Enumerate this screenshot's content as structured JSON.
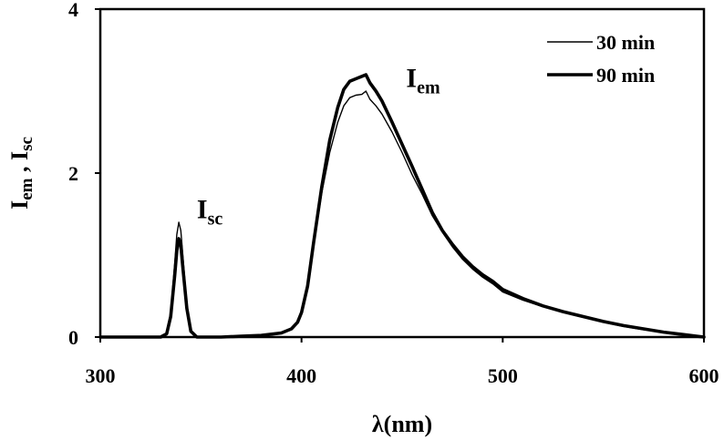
{
  "chart_data": {
    "type": "line",
    "xlabel": "λ(nm)",
    "ylabel_parts": {
      "a_main": "I",
      "a_sub": "em",
      "sep": " , ",
      "b_main": "I",
      "b_sub": "sc"
    },
    "xlim": [
      300,
      600
    ],
    "ylim": [
      0,
      4
    ],
    "xticks": [
      "300",
      "400",
      "500",
      "600"
    ],
    "yticks": [
      "0",
      "2",
      "4"
    ],
    "grid": false,
    "legend_position": "top-right",
    "annotations": [
      {
        "id": "isc",
        "main": "I",
        "sub": "sc",
        "x": 348,
        "y": 1.45
      },
      {
        "id": "iem",
        "main": "I",
        "sub": "em",
        "x": 452,
        "y": 3.05
      }
    ],
    "series": [
      {
        "name": "30 min",
        "style": "thin",
        "color": "#000000",
        "x": [
          300,
          330,
          333,
          335,
          337,
          338,
          339,
          340,
          341,
          343,
          345,
          348,
          352,
          360,
          370,
          380,
          390,
          395,
          398,
          400,
          403,
          406,
          410,
          414,
          418,
          421,
          424,
          427,
          430,
          432,
          434,
          437,
          440,
          445,
          450,
          455,
          460,
          465,
          470,
          475,
          480,
          485,
          490,
          495,
          500,
          510,
          520,
          530,
          540,
          550,
          560,
          570,
          580,
          590,
          600
        ],
        "y": [
          0,
          0,
          0.05,
          0.3,
          0.9,
          1.25,
          1.4,
          1.3,
          1.0,
          0.4,
          0.08,
          0,
          0,
          0,
          0.01,
          0.02,
          0.05,
          0.1,
          0.18,
          0.3,
          0.6,
          1.1,
          1.75,
          2.25,
          2.62,
          2.82,
          2.92,
          2.95,
          2.96,
          3.0,
          2.9,
          2.82,
          2.72,
          2.5,
          2.25,
          1.98,
          1.74,
          1.48,
          1.28,
          1.1,
          0.95,
          0.83,
          0.73,
          0.65,
          0.55,
          0.45,
          0.37,
          0.3,
          0.24,
          0.18,
          0.13,
          0.09,
          0.06,
          0.03,
          0
        ]
      },
      {
        "name": "90 min",
        "style": "thick",
        "color": "#000000",
        "x": [
          300,
          330,
          333,
          335,
          337,
          338,
          339,
          340,
          341,
          343,
          345,
          348,
          352,
          360,
          370,
          380,
          390,
          395,
          398,
          400,
          403,
          406,
          410,
          414,
          418,
          421,
          424,
          427,
          430,
          432,
          434,
          437,
          440,
          445,
          450,
          455,
          460,
          465,
          470,
          475,
          480,
          485,
          490,
          495,
          500,
          510,
          520,
          530,
          540,
          550,
          560,
          570,
          580,
          590,
          600
        ],
        "y": [
          0,
          0,
          0.04,
          0.25,
          0.75,
          1.05,
          1.2,
          1.12,
          0.85,
          0.35,
          0.07,
          0,
          0,
          0,
          0.01,
          0.02,
          0.05,
          0.1,
          0.18,
          0.3,
          0.62,
          1.15,
          1.82,
          2.4,
          2.8,
          3.02,
          3.12,
          3.15,
          3.18,
          3.2,
          3.1,
          3.0,
          2.88,
          2.62,
          2.35,
          2.08,
          1.8,
          1.52,
          1.3,
          1.13,
          0.98,
          0.86,
          0.76,
          0.68,
          0.58,
          0.47,
          0.38,
          0.31,
          0.25,
          0.19,
          0.14,
          0.1,
          0.06,
          0.03,
          0
        ]
      }
    ]
  }
}
